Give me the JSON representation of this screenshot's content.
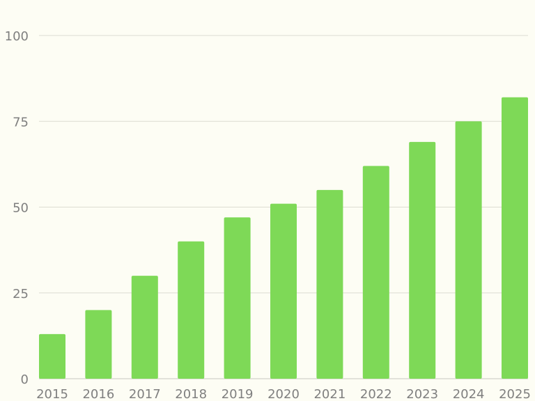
{
  "chart_data": {
    "type": "bar",
    "title": "",
    "xlabel": "",
    "ylabel": "",
    "categories": [
      "2015",
      "2016",
      "2017",
      "2018",
      "2019",
      "2020",
      "2021",
      "2022",
      "2023",
      "2024",
      "2025"
    ],
    "values": [
      13,
      20,
      30,
      40,
      47,
      51,
      55,
      62,
      69,
      75,
      82
    ],
    "ylim": [
      0,
      100
    ],
    "yticks": [
      0,
      25,
      50,
      75,
      100
    ],
    "grid": true,
    "legend": "none",
    "colors": {
      "bar": "#7ed957",
      "background": "#fdfdf4",
      "grid": "#dcdcd2",
      "tick_text": "#7f7f7f"
    }
  }
}
